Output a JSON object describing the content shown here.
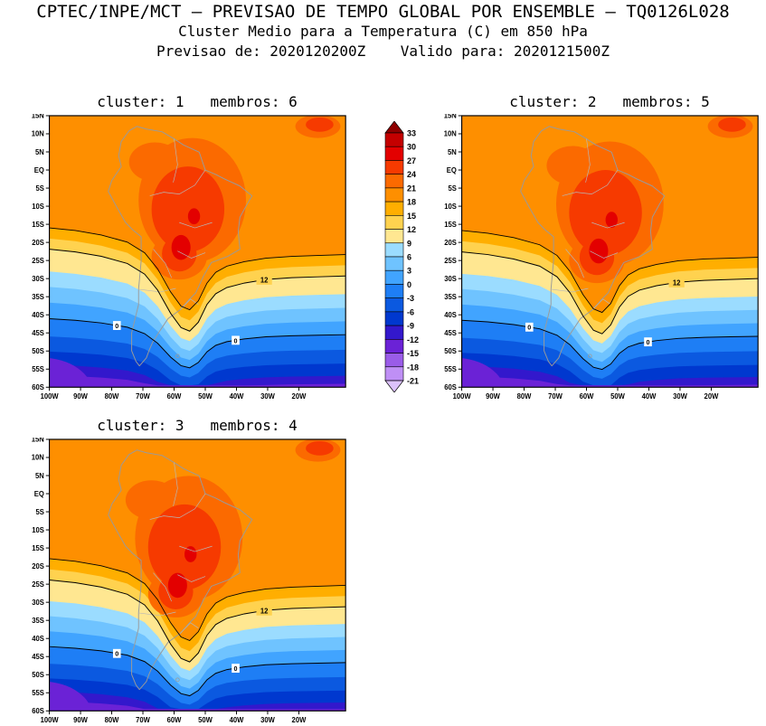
{
  "header": {
    "line1": "CPTEC/INPE/MCT – PREVISAO DE TEMPO GLOBAL POR ENSEMBLE – TQ0126L028",
    "line2": "Cluster Medio para a Temperatura (C) em 850 hPa",
    "line3": "Previsao de: 2020120200Z    Valido para: 2020121500Z"
  },
  "panels": [
    {
      "id": 1,
      "title": "cluster: 1   membros: 6",
      "cluster": 1,
      "membros": 6
    },
    {
      "id": 2,
      "title": "cluster: 2   membros: 5",
      "cluster": 2,
      "membros": 5
    },
    {
      "id": 3,
      "title": "cluster: 3   membros: 4",
      "cluster": 3,
      "membros": 4
    }
  ],
  "axes": {
    "lat_labels": [
      "15N",
      "10N",
      "5N",
      "EQ",
      "5S",
      "10S",
      "15S",
      "20S",
      "25S",
      "30S",
      "35S",
      "40S",
      "45S",
      "50S",
      "55S",
      "60S"
    ],
    "lon_labels": [
      "100W",
      "90W",
      "80W",
      "70W",
      "60W",
      "50W",
      "40W",
      "30W",
      "20W"
    ]
  },
  "chart_data": {
    "type": "heatmap",
    "subtype": "filled-contour-temperature-map",
    "title": "Cluster Medio para a Temperatura (C) em 850 hPa",
    "source": "CPTEC/INPE/MCT – PREVISAO DE TEMPO GLOBAL POR ENSEMBLE – TQ0126L028",
    "forecast_init": "2020120200Z",
    "forecast_valid": "2020121500Z",
    "region": "South America",
    "panels": [
      {
        "cluster": 1,
        "membros": 6
      },
      {
        "cluster": 2,
        "membros": 5
      },
      {
        "cluster": 3,
        "membros": 4
      }
    ],
    "colorbar_levels": [
      33,
      30,
      27,
      24,
      21,
      18,
      15,
      12,
      9,
      6,
      3,
      0,
      -3,
      -6,
      -9,
      -12,
      -15,
      -18,
      -21
    ],
    "colorbar_colors": [
      "#8f0000",
      "#c40000",
      "#e30000",
      "#f63a00",
      "#fb6a00",
      "#fe8f00",
      "#ffae00",
      "#ffd24f",
      "#ffe791",
      "#9bdcff",
      "#6fc3ff",
      "#41a4ff",
      "#1e7ef5",
      "#0b59e0",
      "#0038cf",
      "#3318cc",
      "#6b22d6",
      "#9a5ce8",
      "#bf8ff5",
      "#dcc2fa"
    ],
    "contour_labels_shown": [
      "12",
      "0"
    ],
    "x_tick_labels": [
      "100W",
      "90W",
      "80W",
      "70W",
      "60W",
      "50W",
      "40W",
      "30W",
      "20W"
    ],
    "y_tick_labels": [
      "15N",
      "10N",
      "5N",
      "EQ",
      "5S",
      "10S",
      "15S",
      "20S",
      "25S",
      "30S",
      "35S",
      "40S",
      "45S",
      "50S",
      "55S",
      "60S"
    ],
    "legend_position": "between top panels, vertical colorbar"
  }
}
